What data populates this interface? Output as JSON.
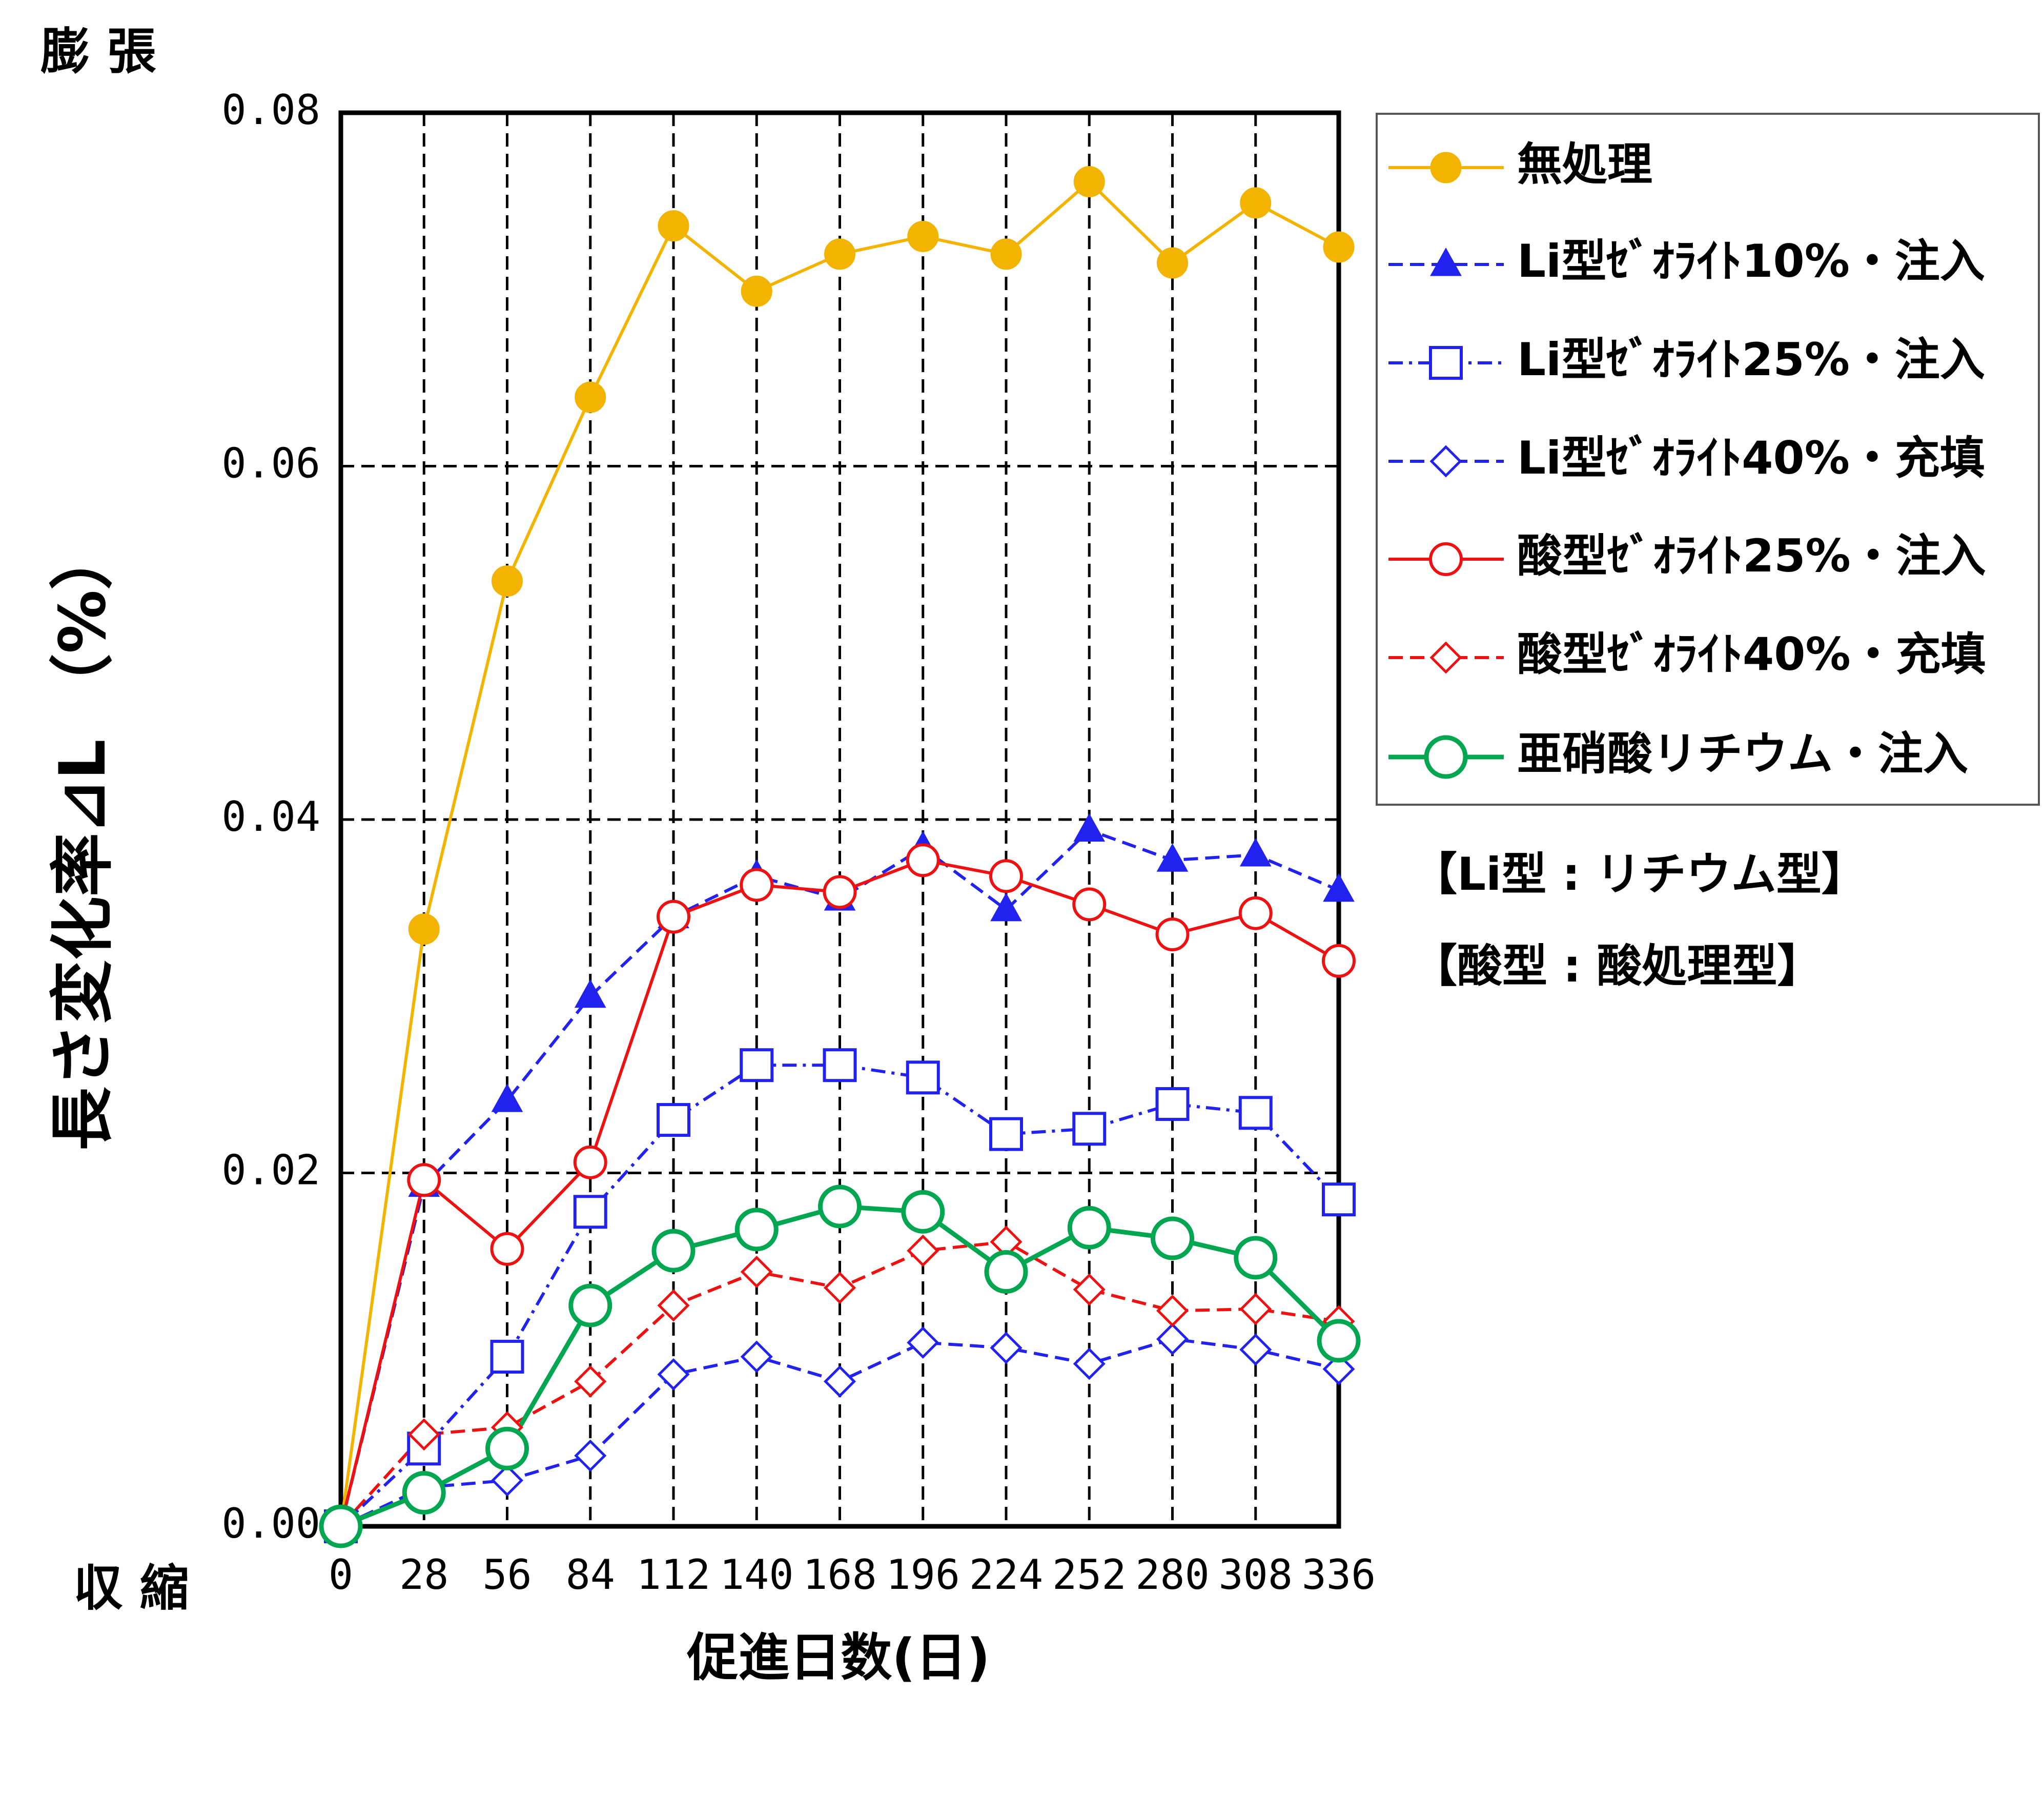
{
  "chart_data": {
    "type": "line",
    "y_label_top": "膨 張",
    "y_label_bottom": "収 縮",
    "ylabel": "長さ変化率⊿L （%）",
    "xlabel": "促進日数(日)",
    "notes": [
      "【Li型 : リチウム型】",
      "【酸型 : 酸処理型】"
    ],
    "x": [
      0,
      28,
      56,
      84,
      112,
      140,
      168,
      196,
      224,
      252,
      280,
      308,
      336
    ],
    "xlim": [
      0,
      336
    ],
    "xticks": [
      0,
      28,
      56,
      84,
      112,
      140,
      168,
      196,
      224,
      252,
      280,
      308,
      336
    ],
    "ylim": [
      0,
      0.08
    ],
    "yticks": [
      {
        "value": 0,
        "label": "0.00"
      },
      {
        "value": 0.02,
        "label": "0.02"
      },
      {
        "value": 0.04,
        "label": "0.04"
      },
      {
        "value": 0.06,
        "label": "0.06"
      },
      {
        "value": 0.08,
        "label": "0.08"
      }
    ],
    "grid": true,
    "legend": "right",
    "series": [
      {
        "name": "無処理",
        "color": "#f2b400",
        "marker": "circle-filled",
        "dash": "solid",
        "values": [
          0,
          0.0338,
          0.0535,
          0.0639,
          0.0736,
          0.0699,
          0.072,
          0.073,
          0.072,
          0.0761,
          0.0715,
          0.0749,
          0.0724
        ]
      },
      {
        "name": "Li型ｾﾞｵﾗｲﾄ10%・注入",
        "color": "#2222ee",
        "marker": "triangle-filled",
        "dash": "dashed",
        "values": [
          0,
          0.0193,
          0.0241,
          0.03,
          0.0345,
          0.0368,
          0.0355,
          0.0384,
          0.0349,
          0.0394,
          0.0377,
          0.038,
          0.036
        ]
      },
      {
        "name": "Li型ｾﾞｵﾗｲﾄ25%・注入",
        "color": "#2222ee",
        "marker": "square-open",
        "dash": "dashdot",
        "values": [
          0,
          0.0044,
          0.0096,
          0.0178,
          0.023,
          0.0261,
          0.0261,
          0.0254,
          0.0222,
          0.0225,
          0.0239,
          0.0234,
          0.0185
        ]
      },
      {
        "name": "Li型ｾﾞｵﾗｲﾄ40%・充填",
        "color": "#2222ee",
        "marker": "diamond-open",
        "dash": "dashed",
        "values": [
          0,
          0.0022,
          0.0026,
          0.004,
          0.0086,
          0.0096,
          0.0082,
          0.0104,
          0.0101,
          0.0092,
          0.0106,
          0.01,
          0.0089
        ]
      },
      {
        "name": "酸型ｾﾞｵﾗｲﾄ25%・注入",
        "color": "#ee1111",
        "marker": "circle-open",
        "dash": "solid",
        "values": [
          0,
          0.0196,
          0.0157,
          0.0206,
          0.0345,
          0.0363,
          0.0359,
          0.0377,
          0.0368,
          0.0352,
          0.0335,
          0.0347,
          0.032
        ]
      },
      {
        "name": "酸型ｾﾞｵﾗｲﾄ40%・充填",
        "color": "#ee1111",
        "marker": "diamond-open",
        "dash": "dashed",
        "values": [
          0,
          0.0052,
          0.0056,
          0.0082,
          0.0125,
          0.0144,
          0.0135,
          0.0156,
          0.0161,
          0.0134,
          0.0122,
          0.0123,
          0.0116
        ]
      },
      {
        "name": "亜硝酸リチウム・注入",
        "color": "#00a650",
        "marker": "circle-open-large",
        "dash": "solid",
        "values": [
          0,
          0.0019,
          0.0044,
          0.0125,
          0.0156,
          0.0168,
          0.0181,
          0.0178,
          0.0144,
          0.0169,
          0.0163,
          0.0152,
          0.0105
        ]
      }
    ]
  }
}
